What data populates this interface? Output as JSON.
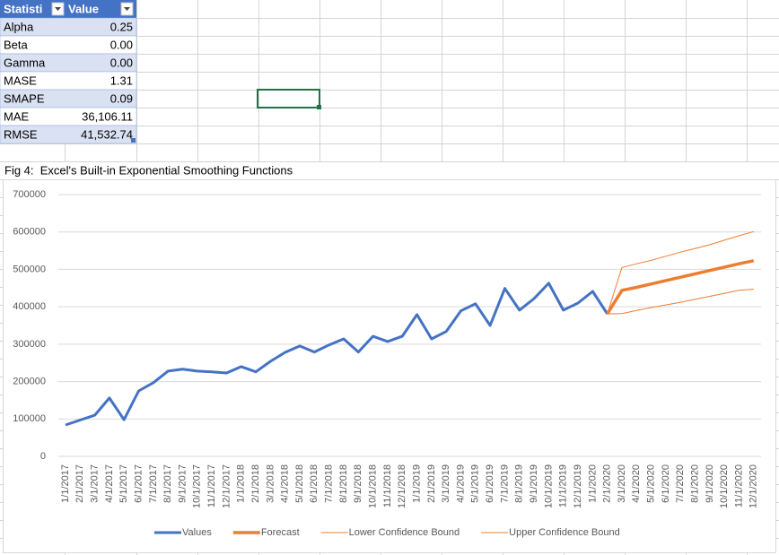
{
  "table": {
    "headers": [
      "Statisti",
      "Value"
    ],
    "rows": [
      [
        "Alpha",
        "0.25"
      ],
      [
        "Beta",
        "0.00"
      ],
      [
        "Gamma",
        "0.00"
      ],
      [
        "MASE",
        "1.31"
      ],
      [
        "SMAPE",
        "0.09"
      ],
      [
        "MAE",
        "36,106.11"
      ],
      [
        "RMSE",
        "41,532.74"
      ]
    ]
  },
  "chart_data": {
    "type": "line",
    "title": "Fig 4:  Excel's Built-in Exponential Smoothing Functions",
    "categories": [
      "1/1/2017",
      "2/1/2017",
      "3/1/2017",
      "4/1/2017",
      "5/1/2017",
      "6/1/2017",
      "7/1/2017",
      "8/1/2017",
      "9/1/2017",
      "10/1/2017",
      "11/1/2017",
      "12/1/2017",
      "1/1/2018",
      "2/1/2018",
      "3/1/2018",
      "4/1/2018",
      "5/1/2018",
      "6/1/2018",
      "7/1/2018",
      "8/1/2018",
      "9/1/2018",
      "10/1/2018",
      "11/1/2018",
      "12/1/2018",
      "1/1/2019",
      "2/1/2019",
      "3/1/2019",
      "4/1/2019",
      "5/1/2019",
      "6/1/2019",
      "7/1/2019",
      "8/1/2019",
      "9/1/2019",
      "10/1/2019",
      "11/1/2019",
      "12/1/2019",
      "1/1/2020",
      "2/1/2020",
      "3/1/2020",
      "4/1/2020",
      "5/1/2020",
      "6/1/2020",
      "7/1/2020",
      "8/1/2020",
      "9/1/2020",
      "10/1/2020",
      "11/1/2020",
      "12/1/2020"
    ],
    "series": [
      {
        "name": "Values",
        "color": "#4472c4",
        "width": 3,
        "values": [
          84000,
          97000,
          110000,
          156000,
          98000,
          175000,
          197000,
          228000,
          233000,
          228000,
          226000,
          223000,
          240000,
          226000,
          254000,
          278000,
          295000,
          279000,
          298000,
          314000,
          279000,
          321000,
          307000,
          321000,
          379000,
          314000,
          334000,
          389000,
          408000,
          350000,
          449000,
          391000,
          422000,
          463000,
          391000,
          410000,
          441000,
          381000,
          null,
          null,
          null,
          null,
          null,
          null,
          null,
          null,
          null,
          null
        ]
      },
      {
        "name": "Forecast",
        "color": "#ed7d31",
        "width": 3.5,
        "values": [
          null,
          null,
          null,
          null,
          null,
          null,
          null,
          null,
          null,
          null,
          null,
          null,
          null,
          null,
          null,
          null,
          null,
          null,
          null,
          null,
          null,
          null,
          null,
          null,
          null,
          null,
          null,
          null,
          null,
          null,
          null,
          null,
          null,
          null,
          null,
          null,
          null,
          381000,
          444000,
          452000,
          461000,
          470000,
          479000,
          488000,
          497000,
          506000,
          515000,
          523000
        ]
      },
      {
        "name": "Lower Confidence Bound",
        "color": "#ed7d31",
        "width": 1,
        "values": [
          null,
          null,
          null,
          null,
          null,
          null,
          null,
          null,
          null,
          null,
          null,
          null,
          null,
          null,
          null,
          null,
          null,
          null,
          null,
          null,
          null,
          null,
          null,
          null,
          null,
          null,
          null,
          null,
          null,
          null,
          null,
          null,
          null,
          null,
          null,
          null,
          null,
          381000,
          382000,
          390000,
          398000,
          405000,
          412000,
          420000,
          428000,
          436000,
          444000,
          447000
        ]
      },
      {
        "name": "Upper Confidence Bound",
        "color": "#ed7d31",
        "width": 1,
        "values": [
          null,
          null,
          null,
          null,
          null,
          null,
          null,
          null,
          null,
          null,
          null,
          null,
          null,
          null,
          null,
          null,
          null,
          null,
          null,
          null,
          null,
          null,
          null,
          null,
          null,
          null,
          null,
          null,
          null,
          null,
          null,
          null,
          null,
          null,
          null,
          null,
          null,
          381000,
          505000,
          515000,
          524000,
          535000,
          546000,
          556000,
          566000,
          578000,
          590000,
          601000
        ]
      }
    ],
    "ylim": [
      0,
      700000
    ],
    "yticks": [
      0,
      100000,
      200000,
      300000,
      400000,
      500000,
      600000,
      700000
    ],
    "grid": true,
    "legend": "bottom"
  }
}
